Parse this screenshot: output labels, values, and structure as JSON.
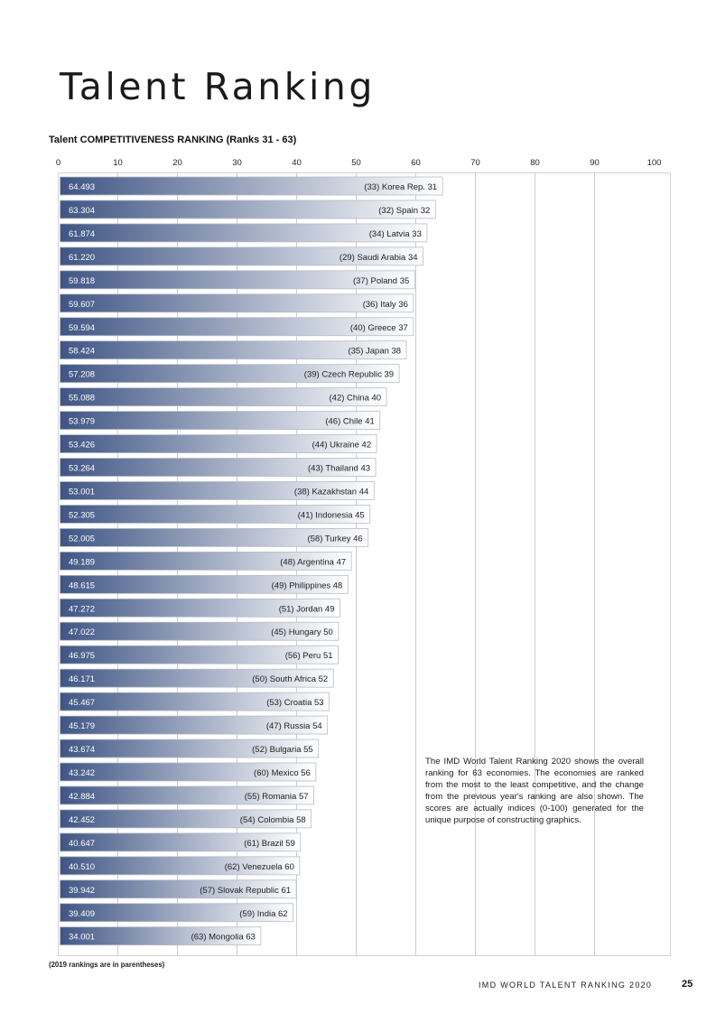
{
  "page": {
    "title": "Talent Ranking",
    "footnote": "(2019 rankings are in parentheses)",
    "footer_label": "IMD WORLD TALENT RANKING 2020",
    "page_number": "25",
    "note": "The IMD World Talent Ranking 2020 shows the overall ranking for 63 economies. The economies are ranked from the most to the least competitive, and the change from the previous year's ranking are also shown. The scores are actually indices (0-100) generated for the unique purpose of constructing graphics."
  },
  "chart_data": {
    "type": "bar",
    "orientation": "horizontal",
    "title": "Talent COMPETITIVENESS RANKING (Ranks 31 - 63)",
    "xlim": [
      0,
      100
    ],
    "xticks": [
      0,
      10,
      20,
      30,
      40,
      50,
      60,
      70,
      80,
      90,
      100
    ],
    "grid": true,
    "colors": {
      "bar_start": "#3f5584",
      "bar_end": "#ffffff",
      "grid": "#c9cdd2"
    },
    "bars": [
      {
        "value": "64.493",
        "label": "(33) Korea Rep. 31"
      },
      {
        "value": "63.304",
        "label": "(32) Spain 32"
      },
      {
        "value": "61.874",
        "label": "(34) Latvia 33"
      },
      {
        "value": "61.220",
        "label": "(29) Saudi Arabia 34"
      },
      {
        "value": "59.818",
        "label": "(37) Poland 35"
      },
      {
        "value": "59.607",
        "label": "(36) Italy 36"
      },
      {
        "value": "59.594",
        "label": "(40) Greece 37"
      },
      {
        "value": "58.424",
        "label": "(35) Japan 38"
      },
      {
        "value": "57.208",
        "label": "(39) Czech Republic 39"
      },
      {
        "value": "55.088",
        "label": "(42) China 40"
      },
      {
        "value": "53.979",
        "label": "(46) Chile 41"
      },
      {
        "value": "53.426",
        "label": "(44) Ukraine 42"
      },
      {
        "value": "53.264",
        "label": "(43) Thailand 43"
      },
      {
        "value": "53.001",
        "label": "(38) Kazakhstan 44"
      },
      {
        "value": "52.305",
        "label": "(41) Indonesia 45"
      },
      {
        "value": "52.005",
        "label": "(58) Turkey 46"
      },
      {
        "value": "49.189",
        "label": "(48) Argentina 47"
      },
      {
        "value": "48.615",
        "label": "(49) Philippines 48"
      },
      {
        "value": "47.272",
        "label": "(51) Jordan 49"
      },
      {
        "value": "47.022",
        "label": "(45) Hungary 50"
      },
      {
        "value": "46.975",
        "label": "(56) Peru 51"
      },
      {
        "value": "46.171",
        "label": "(50) South Africa 52"
      },
      {
        "value": "45.467",
        "label": "(53) Croatia 53"
      },
      {
        "value": "45.179",
        "label": "(47) Russia 54"
      },
      {
        "value": "43.674",
        "label": "(52) Bulgaria 55"
      },
      {
        "value": "43.242",
        "label": "(60) Mexico 56"
      },
      {
        "value": "42.884",
        "label": "(55) Romania 57"
      },
      {
        "value": "42.452",
        "label": "(54) Colombia 58"
      },
      {
        "value": "40.647",
        "label": "(61) Brazil 59"
      },
      {
        "value": "40.510",
        "label": "(62) Venezuela 60"
      },
      {
        "value": "39.942",
        "label": "(57) Slovak Republic 61"
      },
      {
        "value": "39.409",
        "label": "(59) India 62"
      },
      {
        "value": "34.001",
        "label": "(63) Mongolia 63"
      }
    ]
  }
}
